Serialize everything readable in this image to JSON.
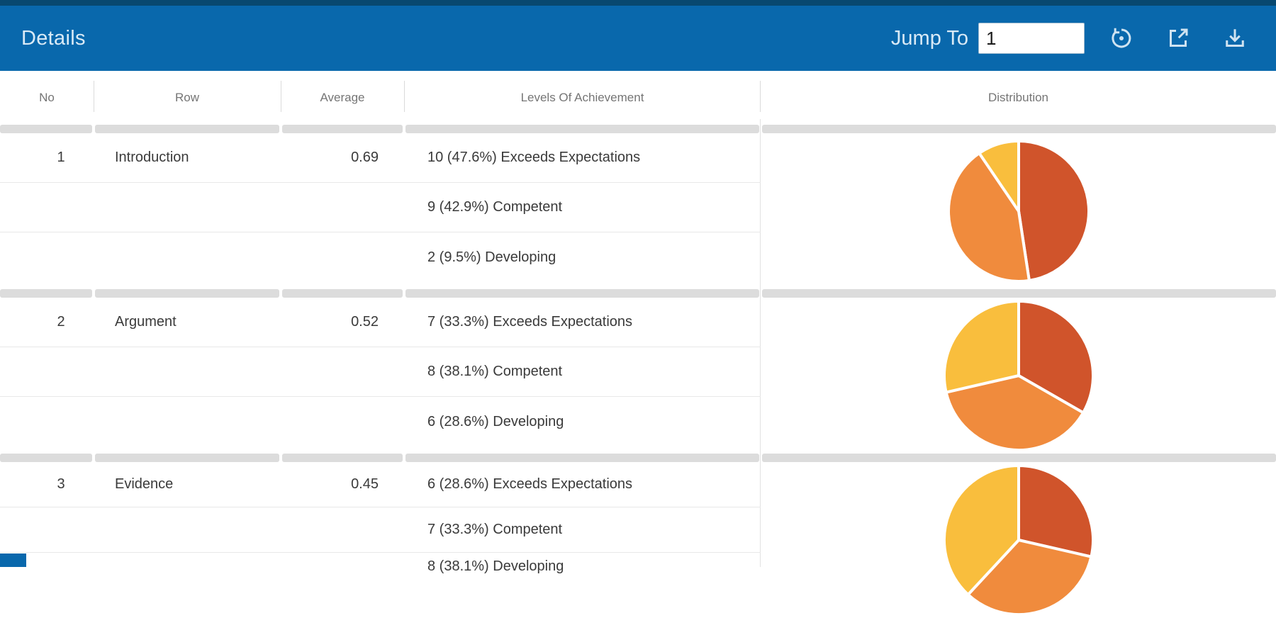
{
  "header": {
    "title": "Details",
    "jump_to_label": "Jump To",
    "jump_to_value": "1",
    "icons": [
      "restore-icon",
      "open-in-new-icon",
      "download-icon"
    ]
  },
  "colors": {
    "topbar_bg": "#0968ac",
    "topbar_strip": "#08486f",
    "header_text": "#d9eaf6",
    "table_header_text": "#757575",
    "body_text": "#3a3a3a",
    "divider_band": "#dcdcdc",
    "row_line": "#e8e8e8",
    "pie_exceeds": "#d0542b",
    "pie_competent": "#f08b3d",
    "pie_developing": "#f9be3d"
  },
  "table": {
    "columns": [
      "No",
      "Row",
      "Average",
      "Levels Of Achievement",
      "Distribution"
    ],
    "rows": [
      {
        "no": "1",
        "row": "Introduction",
        "average": "0.69",
        "levels": [
          "10 (47.6%) Exceeds Expectations",
          "9 (42.9%) Competent",
          "2 (9.5%) Developing"
        ],
        "distribution": {
          "type": "pie",
          "radius": 99,
          "slices": [
            {
              "label": "Exceeds Expectations",
              "percent": 47.6,
              "color": "#d0542b"
            },
            {
              "label": "Competent",
              "percent": 42.9,
              "color": "#f08b3d"
            },
            {
              "label": "Developing",
              "percent": 9.5,
              "color": "#f9be3d"
            }
          ]
        }
      },
      {
        "no": "2",
        "row": "Argument",
        "average": "0.52",
        "levels": [
          "7 (33.3%) Exceeds Expectations",
          "8 (38.1%) Competent",
          "6 (28.6%) Developing"
        ],
        "distribution": {
          "type": "pie",
          "radius": 105,
          "slices": [
            {
              "label": "Exceeds Expectations",
              "percent": 33.3,
              "color": "#d0542b"
            },
            {
              "label": "Competent",
              "percent": 38.1,
              "color": "#f08b3d"
            },
            {
              "label": "Developing",
              "percent": 28.6,
              "color": "#f9be3d"
            }
          ]
        }
      },
      {
        "no": "3",
        "row": "Evidence",
        "average": "0.45",
        "levels": [
          "6 (28.6%) Exceeds Expectations",
          "7 (33.3%) Competent",
          "8 (38.1%) Developing"
        ],
        "distribution": {
          "type": "pie",
          "radius": 105,
          "slices": [
            {
              "label": "Exceeds Expectations",
              "percent": 28.6,
              "color": "#d0542b"
            },
            {
              "label": "Competent",
              "percent": 33.3,
              "color": "#f08b3d"
            },
            {
              "label": "Developing",
              "percent": 38.1,
              "color": "#f9be3d"
            }
          ]
        }
      }
    ]
  }
}
